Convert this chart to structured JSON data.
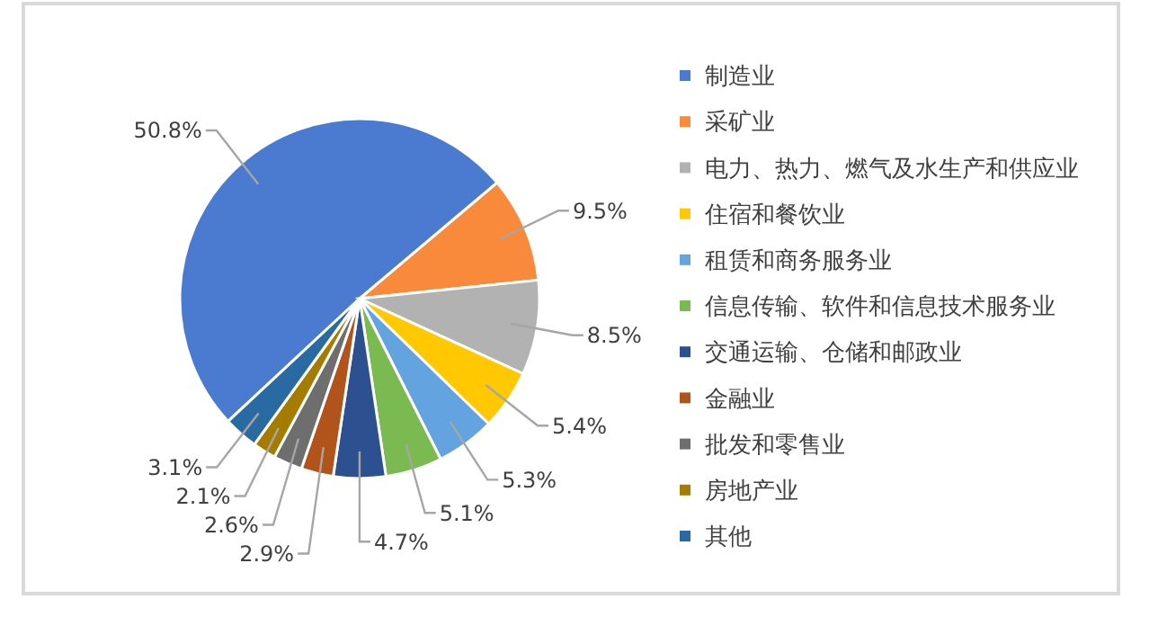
{
  "chart_data": {
    "type": "pie",
    "categories": [
      "制造业",
      "采矿业",
      "电力、热力、燃气及水生产和供应业",
      "住宿和餐饮业",
      "租赁和商务服务业",
      "信息传输、软件和信息技术服务业",
      "交通运输、仓储和邮政业",
      "金融业",
      "批发和零售业",
      "房地产业",
      "其他"
    ],
    "values": [
      50.8,
      9.5,
      8.5,
      5.4,
      5.3,
      5.1,
      4.7,
      2.9,
      2.6,
      2.1,
      3.1
    ],
    "value_labels": [
      "50.8%",
      "9.5%",
      "8.5%",
      "5.4%",
      "5.3%",
      "5.1%",
      "4.7%",
      "2.9%",
      "2.6%",
      "2.1%",
      "3.1%"
    ],
    "colors": [
      "#4a7bd0",
      "#f98a3c",
      "#b2b2b2",
      "#ffc800",
      "#63a4e0",
      "#7aba51",
      "#2d5190",
      "#b0541c",
      "#6e6e6e",
      "#a57c00",
      "#2a6aa3"
    ],
    "legend": "right"
  }
}
